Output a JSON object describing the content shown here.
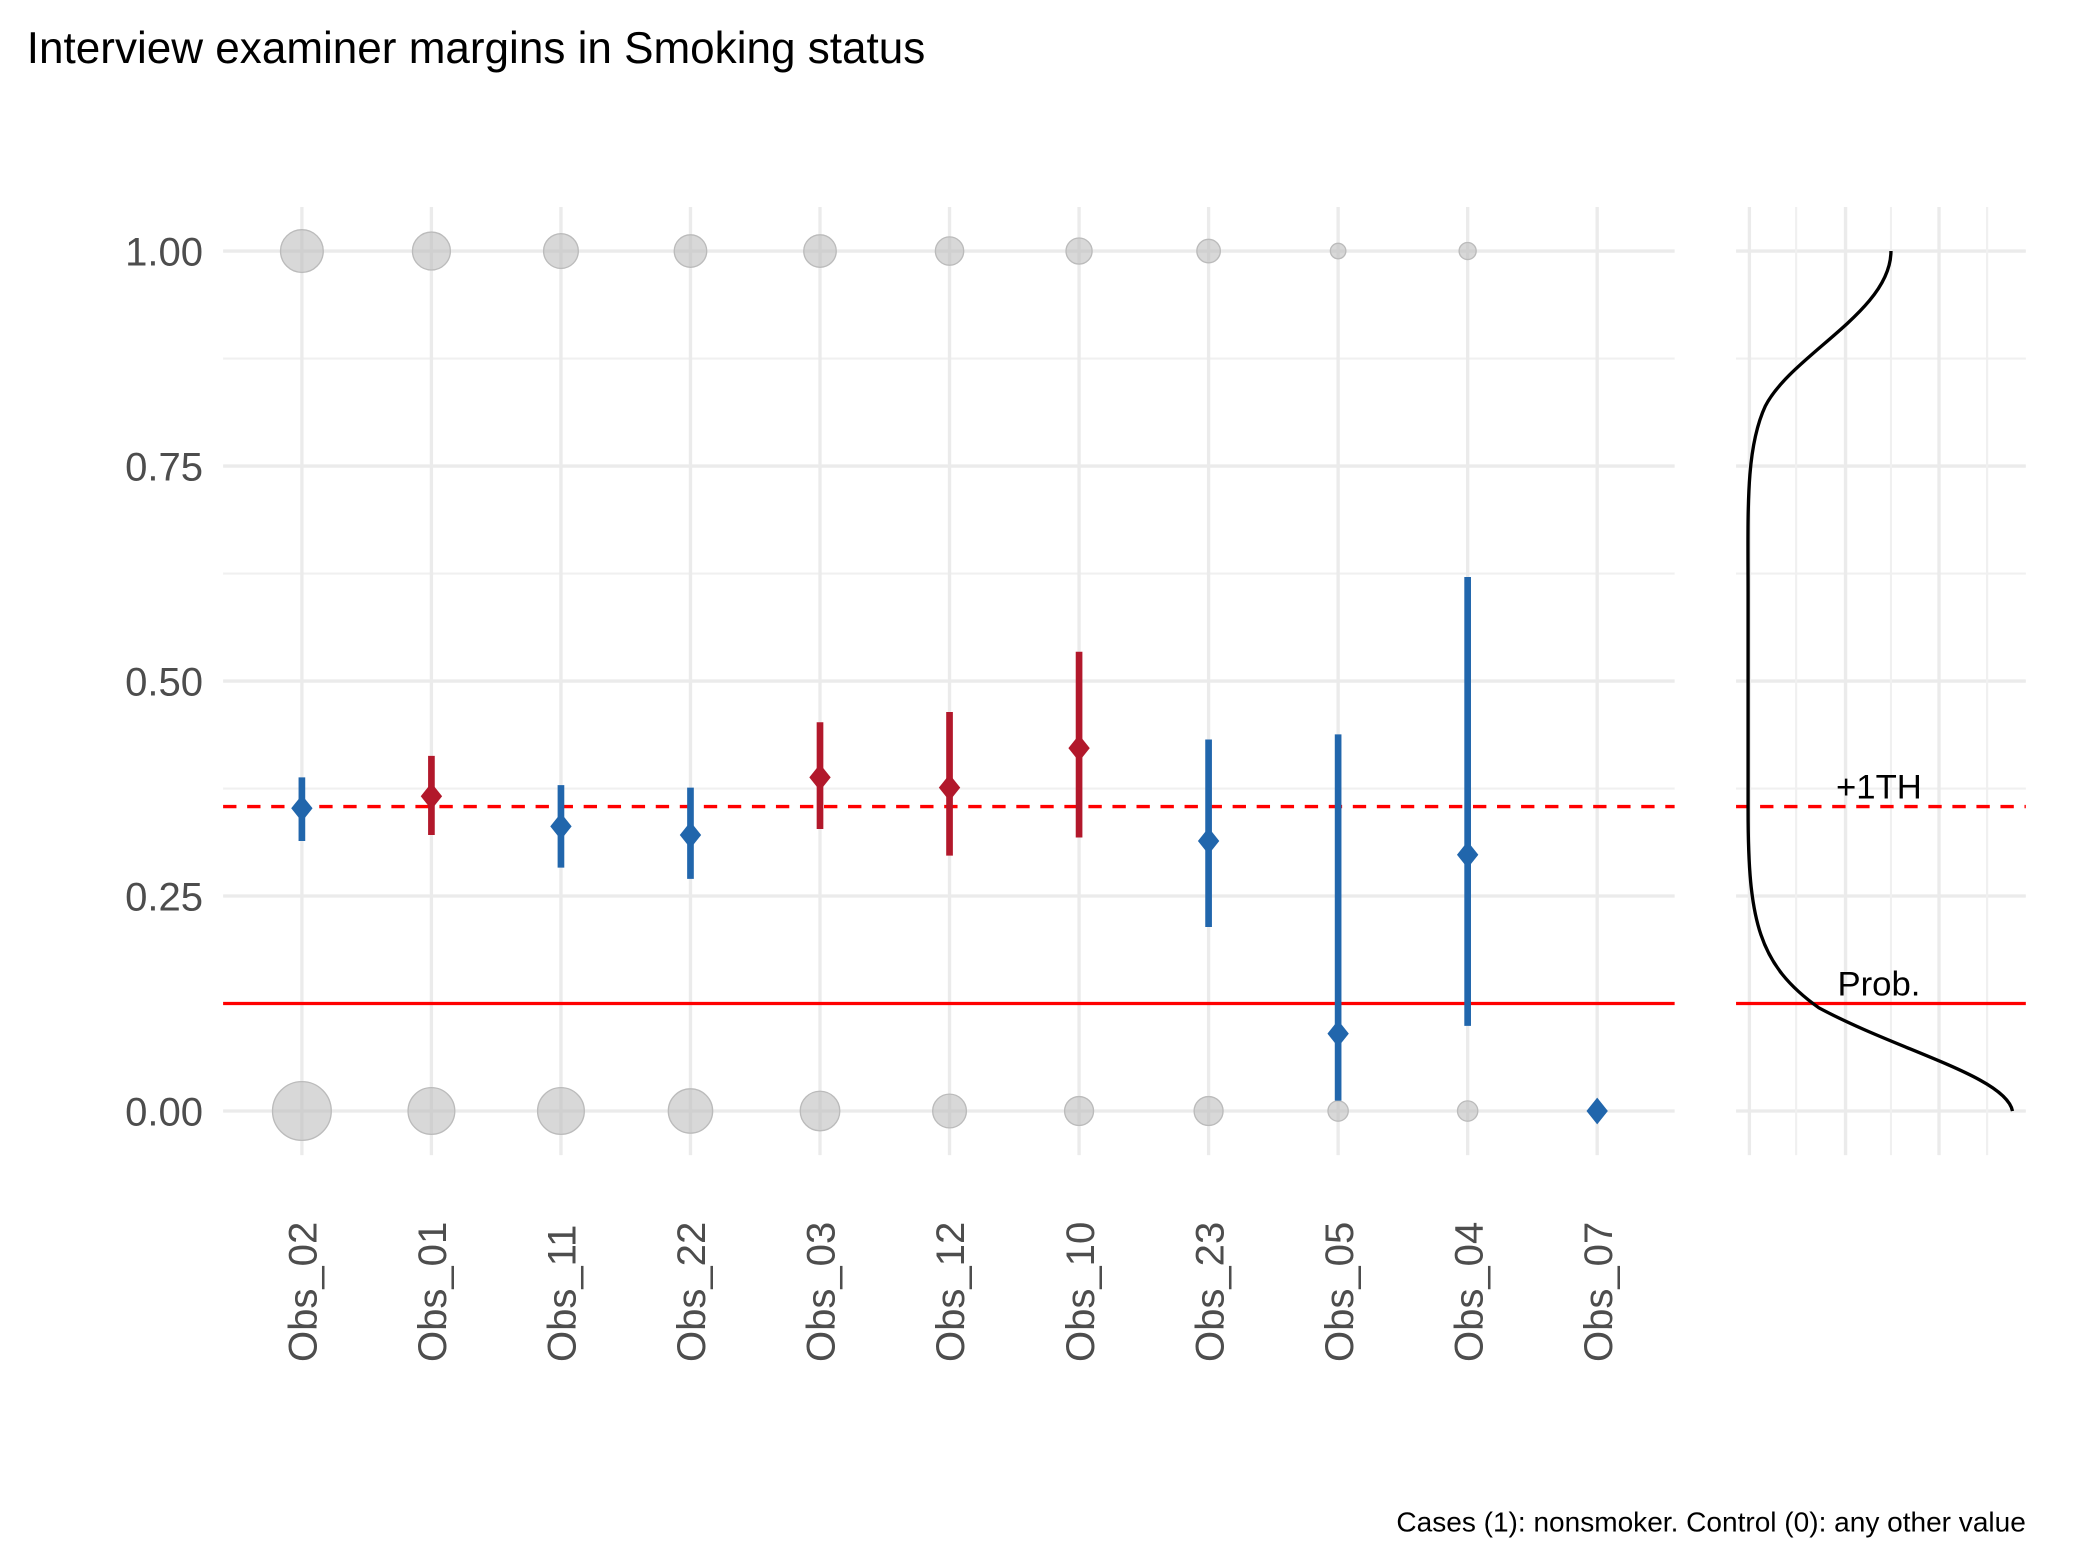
{
  "chart_data": {
    "type": "scatter",
    "title": "Interview examiner margins in Smoking status",
    "caption": "Cases (1): nonsmoker. Control (0): any other value",
    "xlabel": "",
    "ylabel": "",
    "ylim": [
      -0.05,
      1.05
    ],
    "y_ticks": [
      "0.00",
      "0.25",
      "0.50",
      "0.75",
      "1.00"
    ],
    "y_tick_values": [
      0,
      0.25,
      0.5,
      0.75,
      1
    ],
    "categories": [
      "Obs_02",
      "Obs_01",
      "Obs_11",
      "Obs_22",
      "Obs_03",
      "Obs_12",
      "Obs_10",
      "Obs_23",
      "Obs_05",
      "Obs_04",
      "Obs_07"
    ],
    "estimates": [
      0.352,
      0.366,
      0.331,
      0.321,
      0.388,
      0.376,
      0.422,
      0.314,
      0.09,
      0.298,
      0.0
    ],
    "ci_low": [
      0.314,
      0.321,
      0.283,
      0.27,
      0.328,
      0.297,
      0.318,
      0.214,
      0.012,
      0.099,
      null
    ],
    "ci_high": [
      0.388,
      0.413,
      0.379,
      0.376,
      0.452,
      0.464,
      0.534,
      0.432,
      0.438,
      0.621,
      null
    ],
    "above_threshold": [
      false,
      true,
      false,
      false,
      true,
      true,
      true,
      false,
      false,
      false,
      false
    ],
    "count_at_1_relative": [
      1.0,
      0.85,
      0.75,
      0.68,
      0.68,
      0.55,
      0.48,
      0.4,
      0.15,
      0.2,
      0
    ],
    "count_at_0_relative": [
      1.0,
      0.75,
      0.75,
      0.7,
      0.6,
      0.48,
      0.38,
      0.38,
      0.2,
      0.2,
      0
    ],
    "reference_lines": [
      {
        "label": "+1TH",
        "value": 0.354,
        "style": "dashed"
      },
      {
        "label": "Prob.",
        "value": 0.125,
        "style": "solid"
      }
    ],
    "colors": {
      "above": "#B2182B",
      "below": "#2166AC",
      "reference": "#FF0000",
      "bubble": "#BEBEBE",
      "density": "#000000"
    }
  }
}
